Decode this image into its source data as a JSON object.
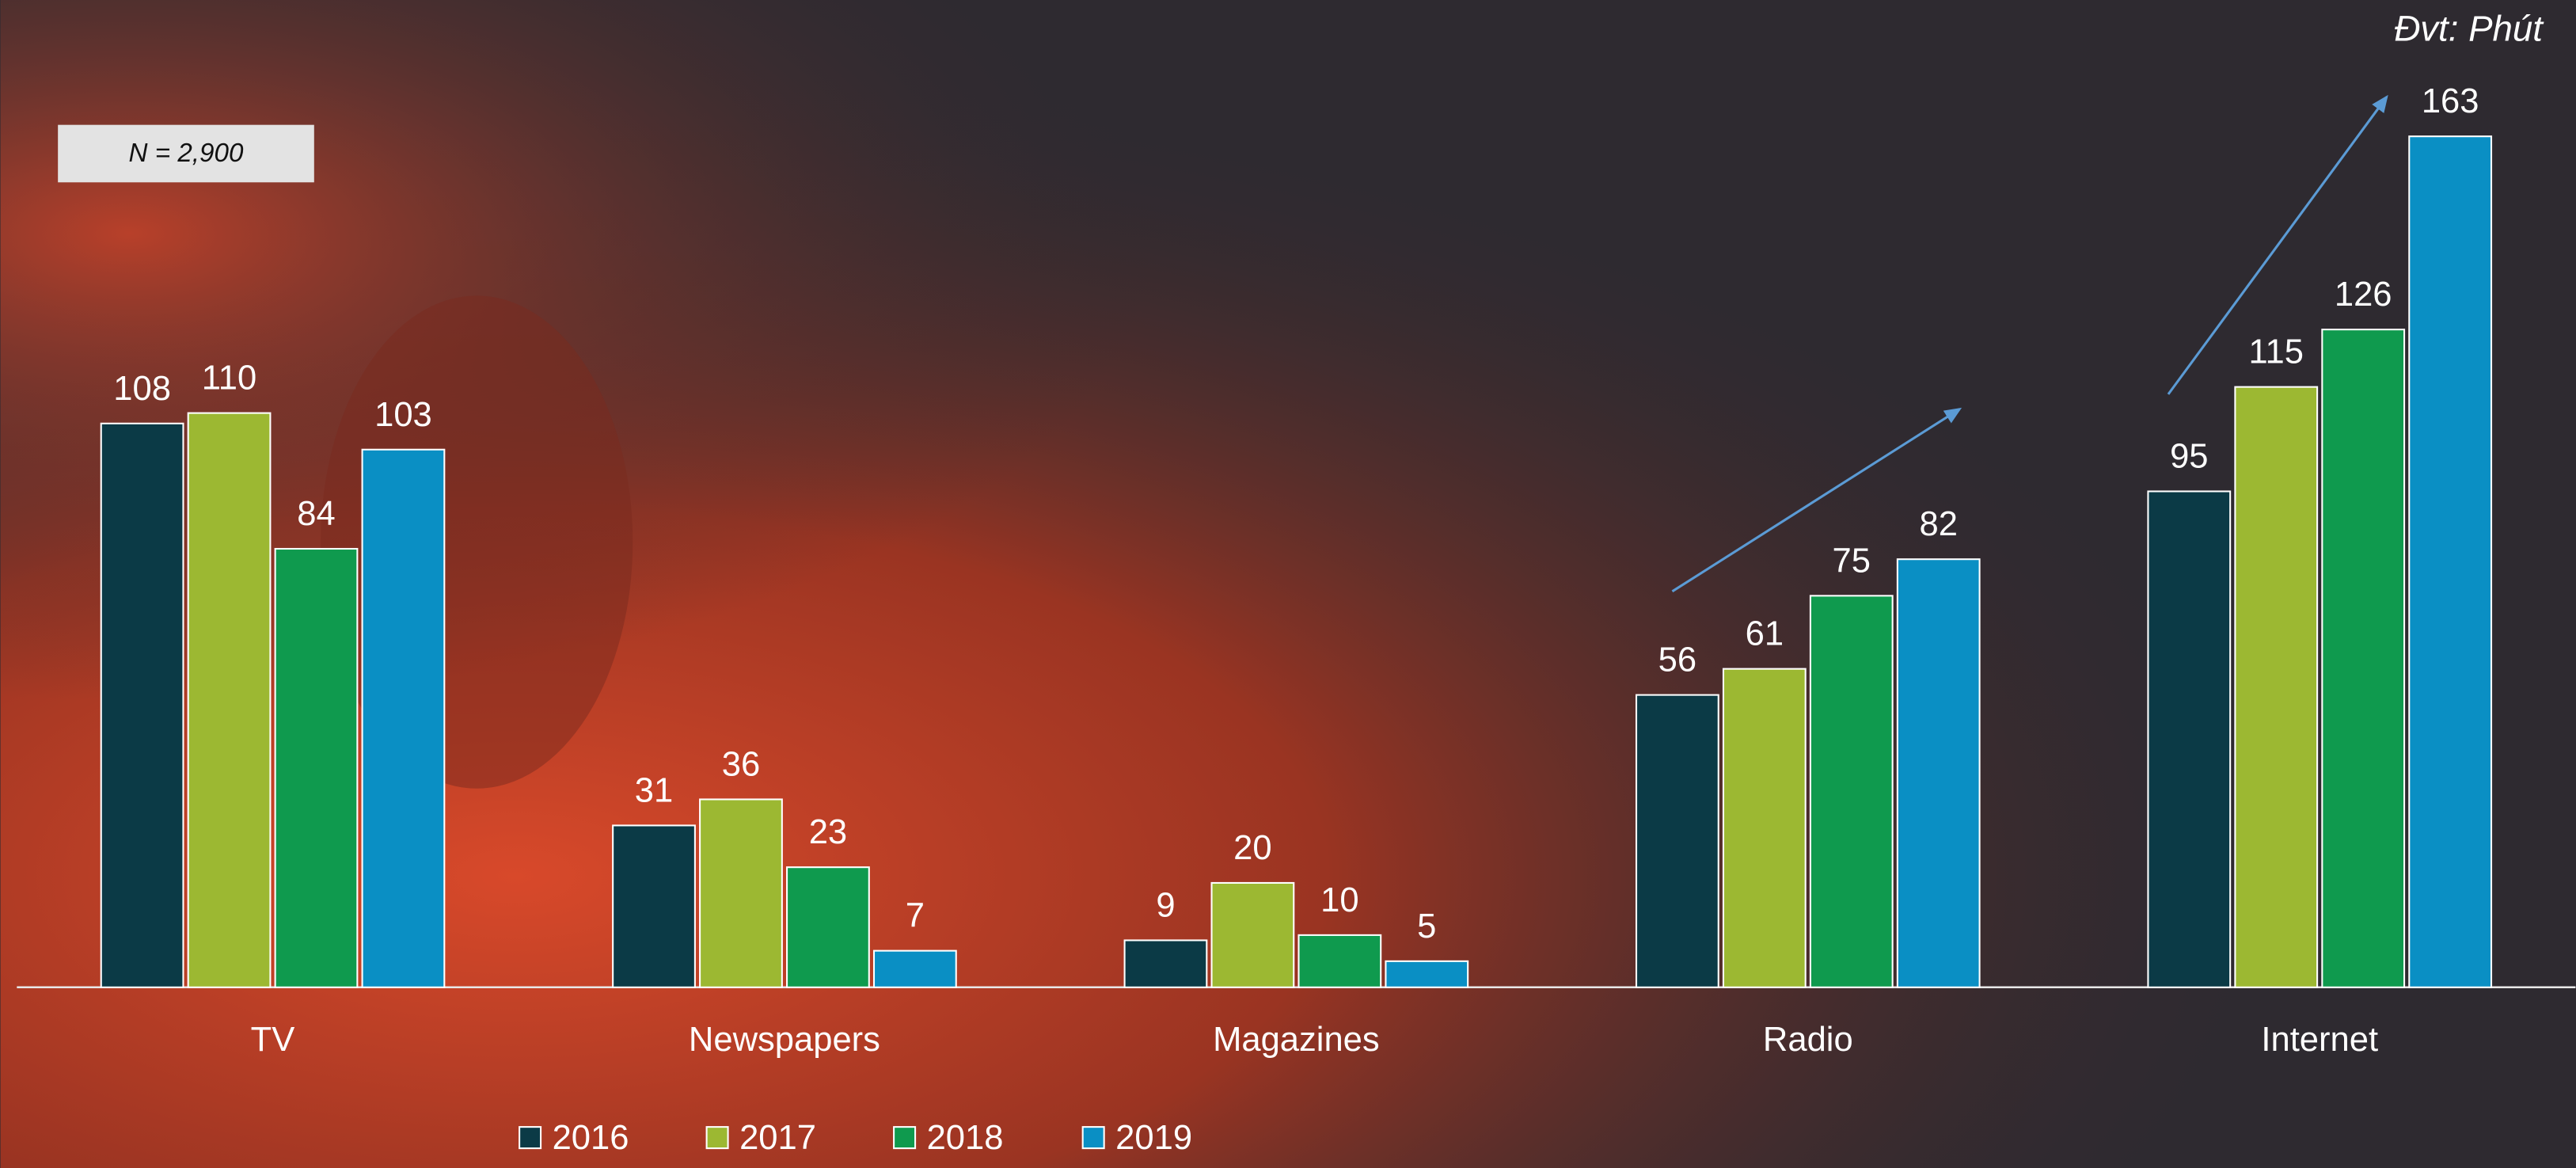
{
  "chart_data": {
    "type": "bar",
    "unit_note": "Đvt: Phút",
    "sample_note": "N = 2,900",
    "categories": [
      "TV",
      "Newspapers",
      "Magazines",
      "Radio",
      "Internet"
    ],
    "series": [
      {
        "name": "2016",
        "color": "#0b3a46",
        "values": [
          108,
          31,
          9,
          56,
          95
        ]
      },
      {
        "name": "2017",
        "color": "#9cb832",
        "values": [
          110,
          36,
          20,
          61,
          115
        ]
      },
      {
        "name": "2018",
        "color": "#0f9a4e",
        "values": [
          84,
          23,
          10,
          75,
          126
        ]
      },
      {
        "name": "2019",
        "color": "#0a8fc4",
        "values": [
          103,
          7,
          5,
          82,
          163
        ]
      }
    ],
    "legend": "bottom"
  }
}
